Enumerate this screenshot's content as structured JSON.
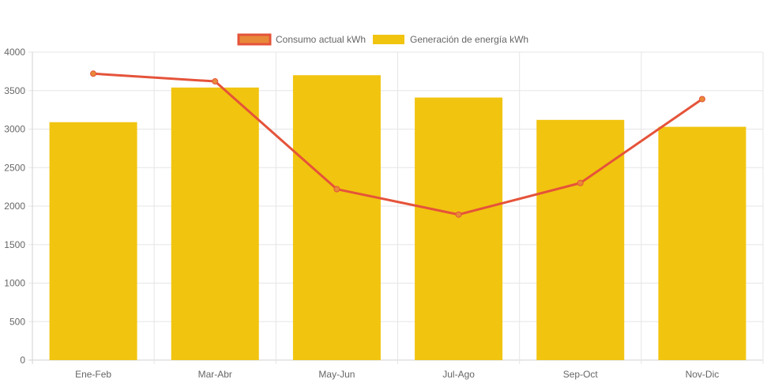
{
  "chart_data": {
    "type": "bar",
    "categories": [
      "Ene-Feb",
      "Mar-Abr",
      "May-Jun",
      "Jul-Ago",
      "Sep-Oct",
      "Nov-Dic"
    ],
    "ylim": [
      0,
      4000
    ],
    "y_ticks": [
      "0",
      "500",
      "1000",
      "1500",
      "2000",
      "2500",
      "3000",
      "3500",
      "4000"
    ],
    "grid": true,
    "legend_position": "top",
    "series": [
      {
        "name": "Consumo actual kWh",
        "type": "line",
        "color": "#e5533a",
        "legend_fill": "#e8893a",
        "values": [
          3720,
          3620,
          2220,
          1890,
          2300,
          3390
        ]
      },
      {
        "name": "Generación de energía kWh",
        "type": "bar",
        "color": "#f1c40f",
        "values": [
          3090,
          3540,
          3700,
          3410,
          3120,
          3030
        ]
      }
    ]
  }
}
